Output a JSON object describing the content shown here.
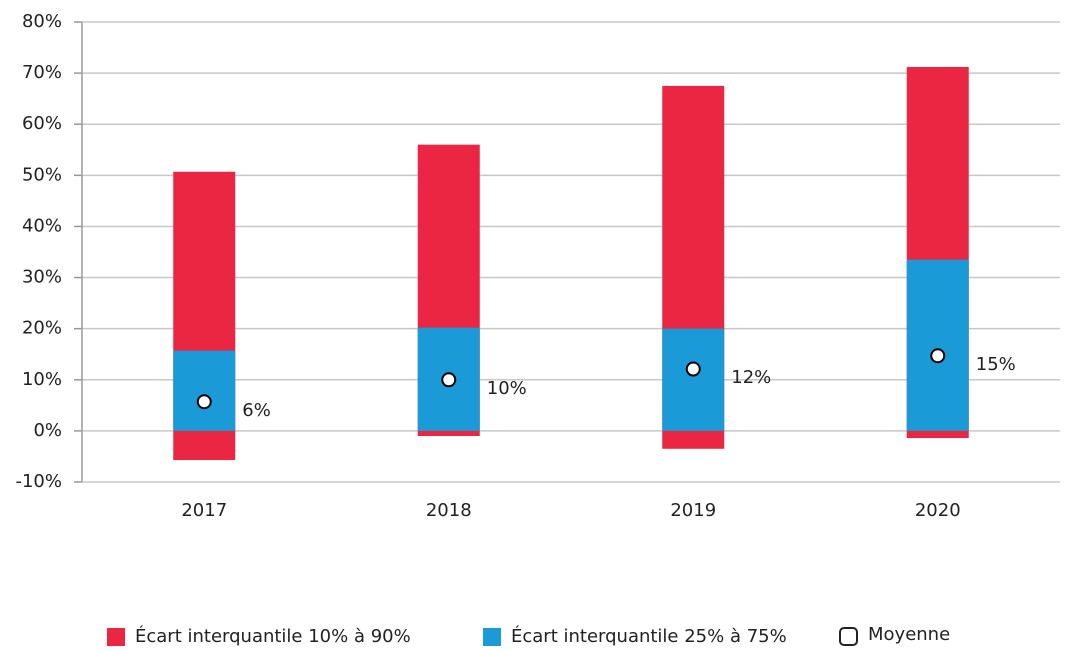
{
  "chart_data": {
    "type": "range_bar",
    "categories": [
      "2017",
      "2018",
      "2019",
      "2020"
    ],
    "series": [
      {
        "name": "Écart interquantile 10% à 90%",
        "color": "#ea2642",
        "low": [
          -5.7,
          -1.0,
          -3.5,
          -1.4
        ],
        "high": [
          50.7,
          56.0,
          67.5,
          71.2
        ]
      },
      {
        "name": "Écart interquantile 25% à 75%",
        "color": "#1a9bd7",
        "low": [
          0,
          0,
          0,
          0
        ],
        "high": [
          15.7,
          20.2,
          20.0,
          33.5
        ]
      }
    ],
    "mean": {
      "name": "Moyenne",
      "values": [
        5.7,
        10.0,
        12.1,
        14.7
      ],
      "value_labels": [
        "6%",
        "10%",
        "12%",
        "15%"
      ]
    },
    "ylim": [
      -10,
      80
    ],
    "yticks": [
      {
        "value": -10,
        "label": "-10%"
      },
      {
        "value": 0,
        "label": "0%"
      },
      {
        "value": 10,
        "label": "10%"
      },
      {
        "value": 20,
        "label": "20%"
      },
      {
        "value": 30,
        "label": "30%"
      },
      {
        "value": 40,
        "label": "40%"
      },
      {
        "value": 50,
        "label": "50%"
      },
      {
        "value": 60,
        "label": "60%"
      },
      {
        "value": 70,
        "label": "70%"
      },
      {
        "value": 80,
        "label": "80%"
      }
    ],
    "grid": true
  }
}
